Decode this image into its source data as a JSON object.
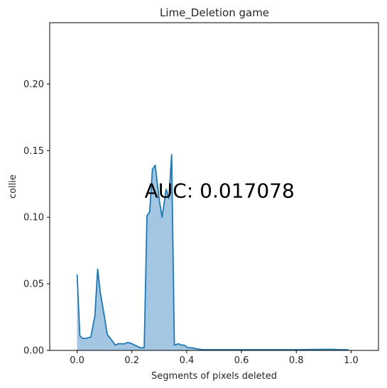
{
  "chart_data": {
    "type": "area",
    "title": "Lime_Deletion game",
    "xlabel": "Segments of pixels deleted",
    "ylabel": "collie",
    "xlim": [
      -0.1,
      1.1
    ],
    "ylim": [
      0,
      0.246
    ],
    "xticks": [
      "0.0",
      "0.2",
      "0.4",
      "0.6",
      "0.8",
      "1.0"
    ],
    "xtick_values": [
      0.0,
      0.2,
      0.4,
      0.6,
      0.8,
      1.0
    ],
    "yticks": [
      "0.00",
      "0.05",
      "0.10",
      "0.15",
      "0.20"
    ],
    "ytick_values": [
      0.0,
      0.05,
      0.1,
      0.15,
      0.2
    ],
    "annotation": "AUC: 0.017078",
    "annotation_x": 0.52,
    "annotation_y": 0.12,
    "grid": false,
    "line_color": "#1f77b4",
    "fill_color": "#a3c6e2",
    "series": [
      {
        "x": [
          0.0,
          0.01,
          0.02,
          0.03,
          0.05,
          0.065,
          0.075,
          0.085,
          0.1,
          0.11,
          0.125,
          0.14,
          0.15,
          0.16,
          0.175,
          0.185,
          0.2,
          0.21,
          0.22,
          0.23,
          0.245,
          0.255,
          0.265,
          0.275,
          0.285,
          0.3,
          0.31,
          0.325,
          0.335,
          0.345,
          0.355,
          0.37,
          0.38,
          0.39,
          0.405,
          0.42,
          0.44,
          0.46,
          0.5,
          0.6,
          0.7,
          0.8,
          0.9,
          0.93,
          0.96,
          0.99
        ],
        "y": [
          0.057,
          0.011,
          0.009,
          0.009,
          0.01,
          0.026,
          0.061,
          0.043,
          0.025,
          0.012,
          0.008,
          0.004,
          0.005,
          0.005,
          0.005,
          0.006,
          0.005,
          0.004,
          0.003,
          0.002,
          0.002,
          0.101,
          0.104,
          0.136,
          0.139,
          0.113,
          0.1,
          0.121,
          0.114,
          0.147,
          0.004,
          0.005,
          0.004,
          0.004,
          0.002,
          0.002,
          0.001,
          0.0005,
          0.0005,
          0.0005,
          0.0005,
          0.0005,
          0.0008,
          0.0008,
          0.0005,
          0.0005
        ]
      }
    ]
  }
}
